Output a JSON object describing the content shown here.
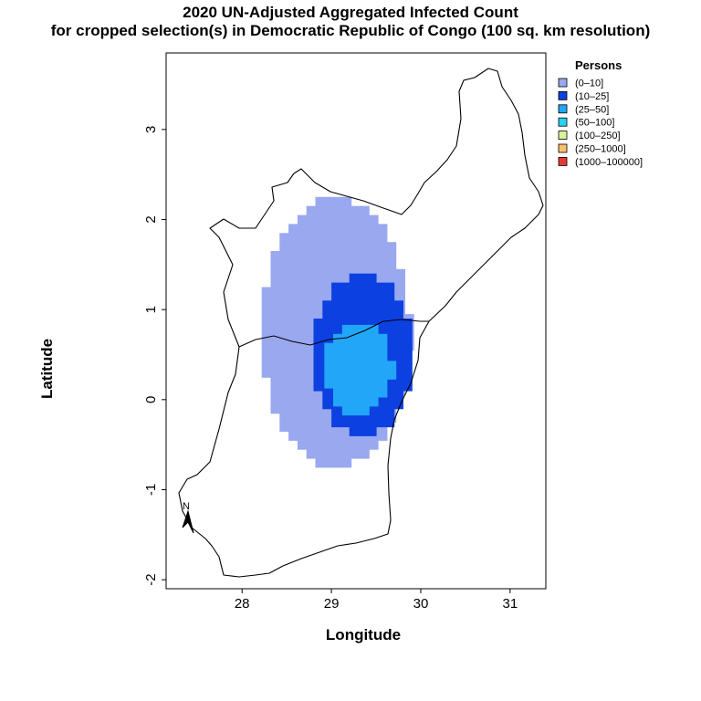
{
  "title_line1": "2020 UN-Adjusted Aggregated Infected Count",
  "title_line2": "for cropped selection(s) in Democratic Republic of Congo (100 sq. km resolution)",
  "xlabel": "Longitude",
  "ylabel": "Latitude",
  "north_arrow_label": "N",
  "chart_data": {
    "type": "heatmap",
    "title": "2020 UN-Adjusted Aggregated Infected Count for cropped selection(s) in Democratic Republic of Congo (100 sq. km resolution)",
    "xlabel": "Longitude",
    "ylabel": "Latitude",
    "xlim": [
      27.15,
      31.4
    ],
    "ylim": [
      -2.1,
      3.85
    ],
    "x_ticks": [
      28,
      29,
      30,
      31
    ],
    "y_ticks": [
      -2,
      -1,
      0,
      1,
      2,
      3
    ],
    "x_tick_labels": [
      "28",
      "29",
      "30",
      "31"
    ],
    "y_tick_labels": [
      "-2",
      "-1",
      "0",
      "1",
      "2",
      "3"
    ],
    "legend_title": "Persons",
    "legend_position": "right",
    "legend": [
      {
        "label": "(0–10]",
        "color": "#9aa8f0"
      },
      {
        "label": "(10–25]",
        "color": "#0c40e0"
      },
      {
        "label": "(25–50]",
        "color": "#22a6f7"
      },
      {
        "label": "(50–100]",
        "color": "#26d3f0"
      },
      {
        "label": "(100–250]",
        "color": "#d9f29e"
      },
      {
        "label": "(250–1000]",
        "color": "#f6c16a"
      },
      {
        "label": "(1000–100000]",
        "color": "#e23a36"
      }
    ],
    "zones": [
      {
        "class": "(0–10]",
        "color": "#9aa8f0",
        "center": [
          29.05,
          0.75
        ],
        "radius_lon": 0.83,
        "radius_lat": 1.5
      },
      {
        "class": "(10–25]",
        "color": "#0c40e0",
        "center": [
          29.35,
          0.5
        ],
        "radius_lon": 0.55,
        "radius_lat": 0.9
      },
      {
        "class": "(25–50]",
        "color": "#22a6f7",
        "center": [
          29.3,
          0.35
        ],
        "radius_lon": 0.38,
        "radius_lat": 0.52
      }
    ]
  }
}
